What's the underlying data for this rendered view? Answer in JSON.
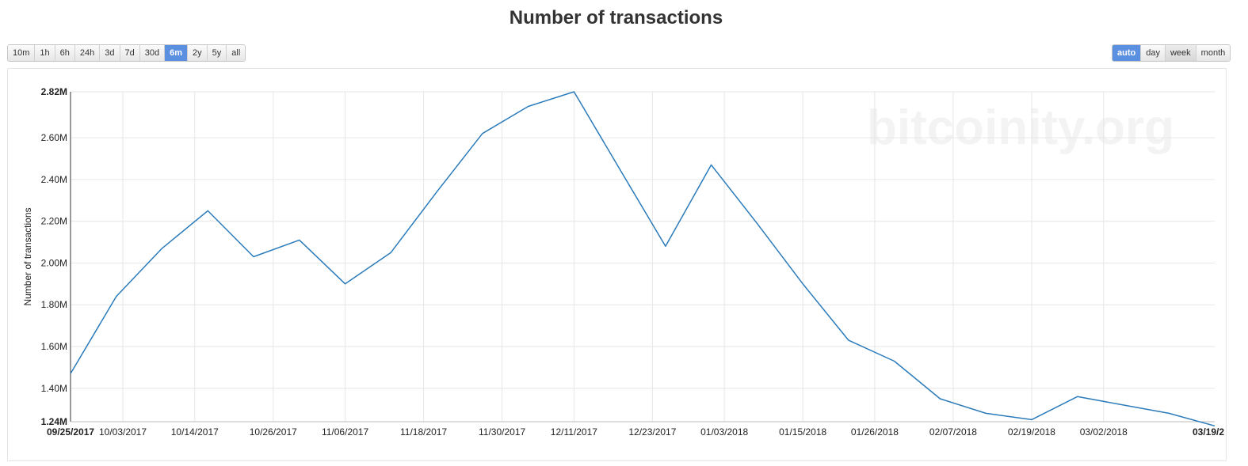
{
  "title": "Number of transactions",
  "range_buttons": [
    {
      "label": "10m"
    },
    {
      "label": "1h"
    },
    {
      "label": "6h"
    },
    {
      "label": "24h"
    },
    {
      "label": "3d"
    },
    {
      "label": "7d"
    },
    {
      "label": "30d"
    },
    {
      "label": "6m",
      "active": true
    },
    {
      "label": "2y"
    },
    {
      "label": "5y"
    },
    {
      "label": "all"
    }
  ],
  "resolution_buttons": [
    {
      "label": "auto",
      "active": true
    },
    {
      "label": "day"
    },
    {
      "label": "week"
    },
    {
      "label": "month"
    }
  ],
  "watermark": "bitcoinity.org",
  "colors": {
    "line": "#2b7bba",
    "grid": "#e6e6e6",
    "accent": "#5b8fe0",
    "watermark": "#f3f3f3"
  },
  "chart_data": {
    "type": "line",
    "title": "Number of transactions",
    "xlabel": "",
    "ylabel": "Number of transactions",
    "ylim": [
      1.24,
      2.82
    ],
    "y_unit": "M",
    "grid": true,
    "y_ticks": [
      "1.24M",
      "1.40M",
      "1.60M",
      "1.80M",
      "2.00M",
      "2.20M",
      "2.40M",
      "2.60M",
      "2.82M"
    ],
    "x_ticks": [
      "09/25/2017",
      "10/03/2017",
      "10/14/2017",
      "10/26/2017",
      "11/06/2017",
      "11/18/2017",
      "11/30/2017",
      "12/11/2017",
      "12/23/2017",
      "01/03/2018",
      "01/15/2018",
      "01/26/2018",
      "02/07/2018",
      "02/19/2018",
      "03/02/2018",
      "03/19/2"
    ],
    "series": [
      {
        "values": [
          {
            "x": "2017-09-25",
            "y": 1.47
          },
          {
            "x": "2017-10-02",
            "y": 1.84
          },
          {
            "x": "2017-10-09",
            "y": 2.07
          },
          {
            "x": "2017-10-16",
            "y": 2.25
          },
          {
            "x": "2017-10-23",
            "y": 2.03
          },
          {
            "x": "2017-10-30",
            "y": 2.11
          },
          {
            "x": "2017-11-06",
            "y": 1.9
          },
          {
            "x": "2017-11-13",
            "y": 2.05
          },
          {
            "x": "2017-11-20",
            "y": 2.34
          },
          {
            "x": "2017-11-27",
            "y": 2.62
          },
          {
            "x": "2017-12-04",
            "y": 2.75
          },
          {
            "x": "2017-12-11",
            "y": 2.82
          },
          {
            "x": "2017-12-18",
            "y": 2.45
          },
          {
            "x": "2017-12-25",
            "y": 2.08
          },
          {
            "x": "2018-01-01",
            "y": 2.47
          },
          {
            "x": "2018-01-08",
            "y": 2.19
          },
          {
            "x": "2018-01-15",
            "y": 1.9
          },
          {
            "x": "2018-01-22",
            "y": 1.63
          },
          {
            "x": "2018-01-29",
            "y": 1.53
          },
          {
            "x": "2018-02-05",
            "y": 1.35
          },
          {
            "x": "2018-02-12",
            "y": 1.28
          },
          {
            "x": "2018-02-19",
            "y": 1.25
          },
          {
            "x": "2018-02-26",
            "y": 1.36
          },
          {
            "x": "2018-03-05",
            "y": 1.32
          },
          {
            "x": "2018-03-12",
            "y": 1.28
          },
          {
            "x": "2018-03-19",
            "y": 1.22
          }
        ]
      }
    ]
  }
}
